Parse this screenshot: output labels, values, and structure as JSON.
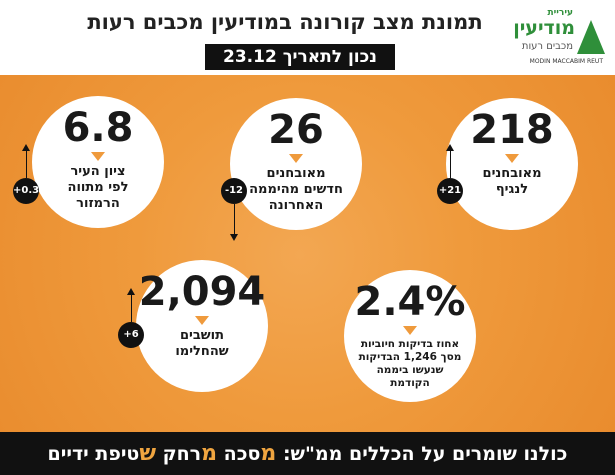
{
  "header": {
    "title": "תמונת מצב קורונה במודיעין מכבים רעות",
    "date": "נכון לתאריך 23.12",
    "logo": {
      "line1": "עיריית",
      "line2": "מודיעין",
      "line3": "מכבים רעות",
      "line4": "MODIN MACCABIM REUT"
    }
  },
  "cards": [
    {
      "value": "218",
      "lines": [
        "מאובחנים",
        "לנגיף"
      ],
      "change": "+21",
      "direction": "up"
    },
    {
      "value": "26",
      "lines": [
        "מאובחנים",
        "חדשים מהיממה",
        "האחרונה"
      ],
      "change": "-12",
      "direction": "down"
    },
    {
      "value": "6.8",
      "lines": [
        "ציון העיר",
        "לפי מתווה",
        "הרמזור"
      ],
      "change": "+0.3",
      "direction": "up"
    },
    {
      "value": "2.4%",
      "lines": [
        "אחוז בדיקות חיוביות",
        "מסך 1,246 הבדיקות",
        "שנעשו ביממה",
        "הקודמת"
      ]
    },
    {
      "value": "2,094",
      "lines": [
        "תושבים",
        "שהחלימו"
      ],
      "change": "+6",
      "direction": "up"
    }
  ],
  "footer": {
    "lead": "כולנו שומרים על הכללים ממ\"ש:",
    "words": [
      {
        "initial": "מ",
        "rest": "סכה"
      },
      {
        "initial": "מ",
        "rest": "רחק"
      },
      {
        "initial": "ש",
        "rest": "טיפת ידיים"
      }
    ]
  }
}
